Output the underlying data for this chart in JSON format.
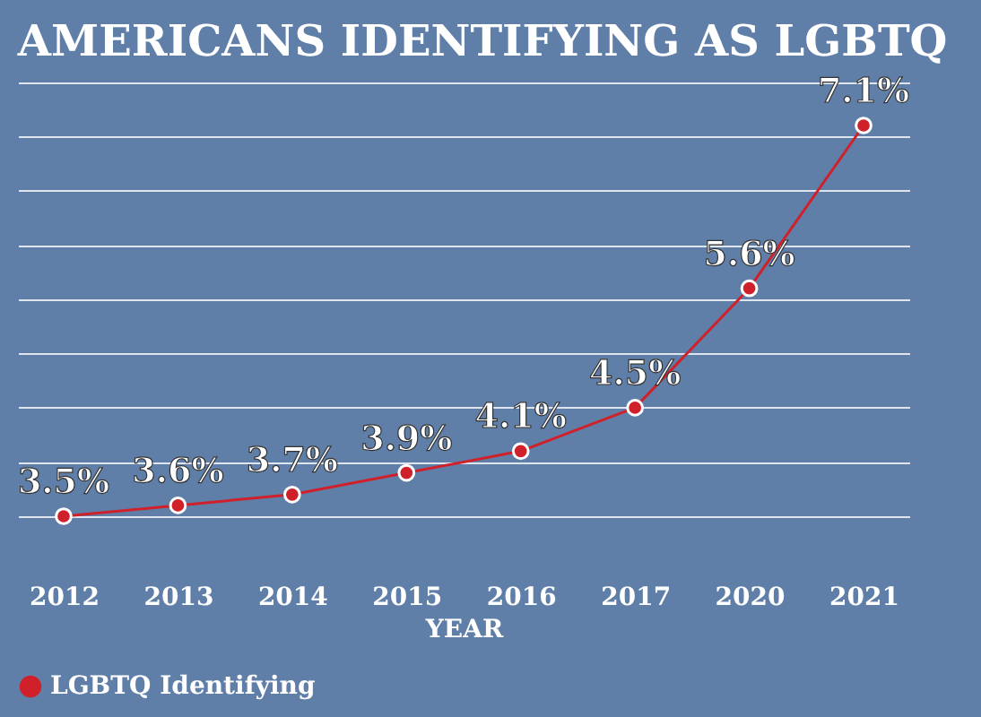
{
  "chart_data": {
    "type": "line",
    "title": "AMERICANS IDENTIFYING AS LGBTQ",
    "xlabel": "YEAR",
    "categories": [
      "2012",
      "2013",
      "2014",
      "2015",
      "2016",
      "2017",
      "2020",
      "2021"
    ],
    "series": [
      {
        "name": "LGBTQ Identifying",
        "color": "#d0202a",
        "values": [
          3.5,
          3.6,
          3.7,
          3.9,
          4.1,
          4.5,
          5.6,
          7.1
        ],
        "value_labels": [
          "3.5%",
          "3.6%",
          "3.7%",
          "3.9%",
          "4.1%",
          "4.5%",
          "5.6%",
          "7.1%"
        ]
      }
    ],
    "tick_labels": "x",
    "grid": "y",
    "legend": "bottom",
    "marker": "circle",
    "line_style": "solid"
  }
}
